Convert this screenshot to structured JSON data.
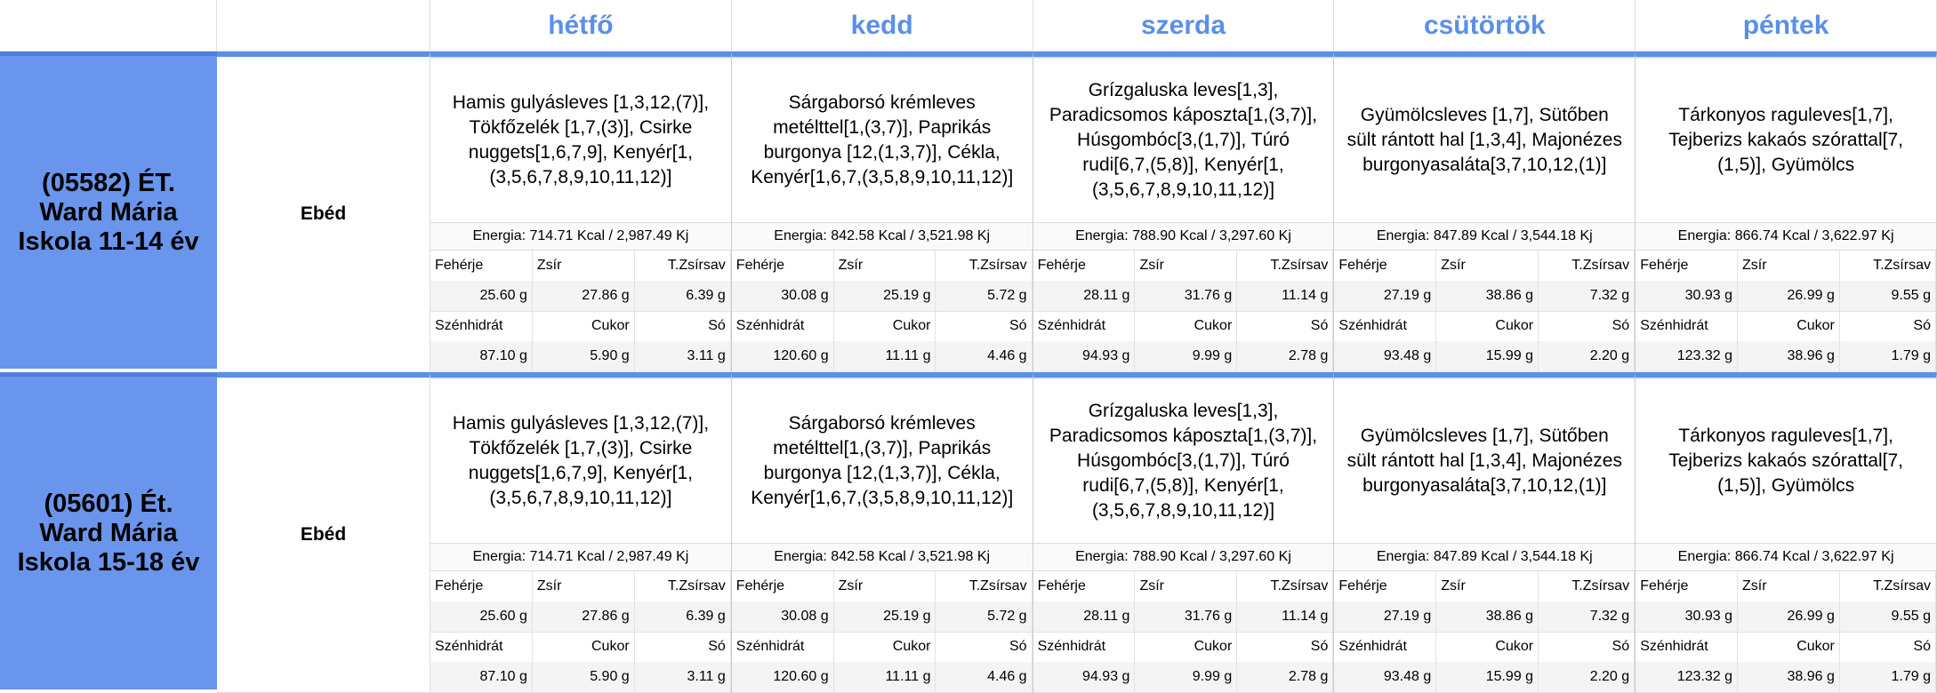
{
  "header": {
    "days": [
      "hétfő",
      "kedd",
      "szerda",
      "csütörtök",
      "péntek"
    ]
  },
  "nutrient_labels": [
    "Fehérje",
    "Zsír",
    "T.Zsírsav",
    "Szénhidrát",
    "Cukor",
    "Só"
  ],
  "groups": [
    {
      "name": "(05582) ÉT. Ward Mária Iskola 11-14 év",
      "meal": "Ebéd",
      "days": [
        {
          "menu": "Hamis gulyásleves [1,3,12,(7)], Tökfőzelék [1,7,(3)], Csirke nuggets[1,6,7,9], Kenyér[1,(3,5,6,7,8,9,10,11,12)]",
          "energy": "Energia: 714.71 Kcal / 2,987.49 Kj",
          "values": [
            "25.60 g",
            "27.86 g",
            "6.39 g",
            "87.10 g",
            "5.90 g",
            "3.11 g"
          ]
        },
        {
          "menu": "Sárgaborsó krémleves metélttel[1,(3,7)], Paprikás burgonya [12,(1,3,7)], Cékla, Kenyér[1,6,7,(3,5,8,9,10,11,12)]",
          "energy": "Energia: 842.58 Kcal / 3,521.98 Kj",
          "values": [
            "30.08 g",
            "25.19 g",
            "5.72 g",
            "120.60 g",
            "11.11 g",
            "4.46 g"
          ]
        },
        {
          "menu": "Grízgaluska leves[1,3], Paradicsomos káposzta[1,(3,7)], Húsgombóc[3,(1,7)], Túró rudi[6,7,(5,8)], Kenyér[1,(3,5,6,7,8,9,10,11,12)]",
          "energy": "Energia: 788.90 Kcal / 3,297.60 Kj",
          "values": [
            "28.11 g",
            "31.76 g",
            "11.14 g",
            "94.93 g",
            "9.99 g",
            "2.78 g"
          ]
        },
        {
          "menu": "Gyümölcsleves [1,7], Sütőben sült rántott hal [1,3,4], Majonézes burgonyasaláta[3,7,10,12,(1)]",
          "energy": "Energia: 847.89 Kcal / 3,544.18 Kj",
          "values": [
            "27.19 g",
            "38.86 g",
            "7.32 g",
            "93.48 g",
            "15.99 g",
            "2.20 g"
          ]
        },
        {
          "menu": "Tárkonyos raguleves[1,7], Tejberizs kakaós szórattal[7,(1,5)], Gyümölcs",
          "energy": "Energia: 866.74 Kcal / 3,622.97 Kj",
          "values": [
            "30.93 g",
            "26.99 g",
            "9.55 g",
            "123.32 g",
            "38.96 g",
            "1.79 g"
          ]
        }
      ]
    },
    {
      "name": "(05601) Ét. Ward Mária Iskola 15-18 év",
      "meal": "Ebéd",
      "days": [
        {
          "menu": "Hamis gulyásleves [1,3,12,(7)], Tökfőzelék [1,7,(3)], Csirke nuggets[1,6,7,9], Kenyér[1,(3,5,6,7,8,9,10,11,12)]",
          "energy": "Energia: 714.71 Kcal / 2,987.49 Kj",
          "values": [
            "25.60 g",
            "27.86 g",
            "6.39 g",
            "87.10 g",
            "5.90 g",
            "3.11 g"
          ]
        },
        {
          "menu": "Sárgaborsó krémleves metélttel[1,(3,7)], Paprikás burgonya [12,(1,3,7)], Cékla, Kenyér[1,6,7,(3,5,8,9,10,11,12)]",
          "energy": "Energia: 842.58 Kcal / 3,521.98 Kj",
          "values": [
            "30.08 g",
            "25.19 g",
            "5.72 g",
            "120.60 g",
            "11.11 g",
            "4.46 g"
          ]
        },
        {
          "menu": "Grízgaluska leves[1,3], Paradicsomos káposzta[1,(3,7)], Húsgombóc[3,(1,7)], Túró rudi[6,7,(5,8)], Kenyér[1,(3,5,6,7,8,9,10,11,12)]",
          "energy": "Energia: 788.90 Kcal / 3,297.60 Kj",
          "values": [
            "28.11 g",
            "31.76 g",
            "11.14 g",
            "94.93 g",
            "9.99 g",
            "2.78 g"
          ]
        },
        {
          "menu": "Gyümölcsleves [1,7], Sütőben sült rántott hal [1,3,4], Majonézes burgonyasaláta[3,7,10,12,(1)]",
          "energy": "Energia: 847.89 Kcal / 3,544.18 Kj",
          "values": [
            "27.19 g",
            "38.86 g",
            "7.32 g",
            "93.48 g",
            "15.99 g",
            "2.20 g"
          ]
        },
        {
          "menu": "Tárkonyos raguleves[1,7], Tejberizs kakaós szórattal[7,(1,5)], Gyümölcs",
          "energy": "Energia: 866.74 Kcal / 3,622.97 Kj",
          "values": [
            "30.93 g",
            "26.99 g",
            "9.55 g",
            "123.32 g",
            "38.96 g",
            "1.79 g"
          ]
        }
      ]
    }
  ]
}
